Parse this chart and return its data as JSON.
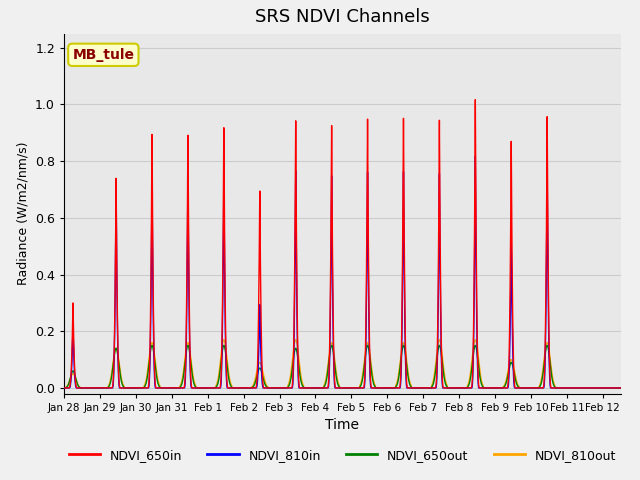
{
  "title": "SRS NDVI Channels",
  "xlabel": "Time",
  "ylabel": "Radiance (W/m2/nm/s)",
  "annotation": "MB_tule",
  "annotation_color": "#8B0000",
  "annotation_bg": "#FFFFCC",
  "annotation_border": "#CCCC00",
  "ylim": [
    -0.02,
    1.25
  ],
  "xlim": [
    0.0,
    15.5
  ],
  "grid_color": "#cccccc",
  "plot_bg_color": "#e8e8e8",
  "fig_bg_color": "#f0f0f0",
  "xtick_labels": [
    "Jan 28",
    "Jan 29",
    "Jan 30",
    "Jan 31",
    "Feb 1",
    "Feb 2",
    "Feb 3",
    "Feb 4",
    "Feb 5",
    "Feb 6",
    "Feb 7",
    "Feb 8",
    "Feb 9",
    "Feb 10",
    "Feb 11",
    "Feb 12"
  ],
  "xtick_positions": [
    0,
    1,
    2,
    3,
    4,
    5,
    6,
    7,
    8,
    9,
    10,
    11,
    12,
    13,
    14,
    15
  ],
  "ytick_positions": [
    0.0,
    0.2,
    0.4,
    0.6,
    0.8,
    1.0,
    1.2
  ],
  "peaks": [
    {
      "day": 0.25,
      "r650in": 0.3,
      "r810in": 0.22,
      "r650out": 0.06,
      "r810out": 0.05,
      "w650in": 0.12,
      "w810in": 0.1,
      "wout": 0.2
    },
    {
      "day": 1.45,
      "r650in": 0.75,
      "r810in": 0.7,
      "r650out": 0.14,
      "r810out": 0.14,
      "w650in": 0.12,
      "w810in": 0.1,
      "wout": 0.22
    },
    {
      "day": 2.45,
      "r650in": 0.91,
      "r810in": 0.73,
      "r650out": 0.15,
      "r810out": 0.16,
      "w650in": 0.12,
      "w810in": 0.1,
      "wout": 0.22
    },
    {
      "day": 3.45,
      "r650in": 0.91,
      "r810in": 0.75,
      "r650out": 0.15,
      "r810out": 0.16,
      "w650in": 0.12,
      "w810in": 0.1,
      "wout": 0.22
    },
    {
      "day": 4.45,
      "r650in": 0.94,
      "r810in": 0.75,
      "r650out": 0.15,
      "r810out": 0.17,
      "w650in": 0.12,
      "w810in": 0.1,
      "wout": 0.22
    },
    {
      "day": 5.45,
      "r650in": 0.71,
      "r810in": 0.3,
      "r650out": 0.07,
      "r810out": 0.09,
      "w650in": 0.12,
      "w810in": 0.1,
      "wout": 0.22
    },
    {
      "day": 6.45,
      "r650in": 0.96,
      "r810in": 0.78,
      "r650out": 0.14,
      "r810out": 0.17,
      "w650in": 0.12,
      "w810in": 0.1,
      "wout": 0.22
    },
    {
      "day": 7.45,
      "r650in": 0.94,
      "r810in": 0.76,
      "r650out": 0.15,
      "r810out": 0.16,
      "w650in": 0.12,
      "w810in": 0.1,
      "wout": 0.22
    },
    {
      "day": 8.45,
      "r650in": 0.96,
      "r810in": 0.77,
      "r650out": 0.15,
      "r810out": 0.16,
      "w650in": 0.12,
      "w810in": 0.1,
      "wout": 0.22
    },
    {
      "day": 9.45,
      "r650in": 0.96,
      "r810in": 0.77,
      "r650out": 0.15,
      "r810out": 0.16,
      "w650in": 0.12,
      "w810in": 0.1,
      "wout": 0.22
    },
    {
      "day": 10.45,
      "r650in": 0.95,
      "r810in": 0.76,
      "r650out": 0.15,
      "r810out": 0.17,
      "w650in": 0.12,
      "w810in": 0.1,
      "wout": 0.22
    },
    {
      "day": 11.45,
      "r650in": 1.02,
      "r810in": 0.82,
      "r650out": 0.15,
      "r810out": 0.17,
      "w650in": 0.12,
      "w810in": 0.1,
      "wout": 0.22
    },
    {
      "day": 12.45,
      "r650in": 0.87,
      "r810in": 0.52,
      "r650out": 0.09,
      "r810out": 0.1,
      "w650in": 0.12,
      "w810in": 0.1,
      "wout": 0.22
    },
    {
      "day": 13.45,
      "r650in": 0.96,
      "r810in": 0.77,
      "r650out": 0.15,
      "r810out": 0.16,
      "w650in": 0.12,
      "w810in": 0.1,
      "wout": 0.22
    }
  ]
}
